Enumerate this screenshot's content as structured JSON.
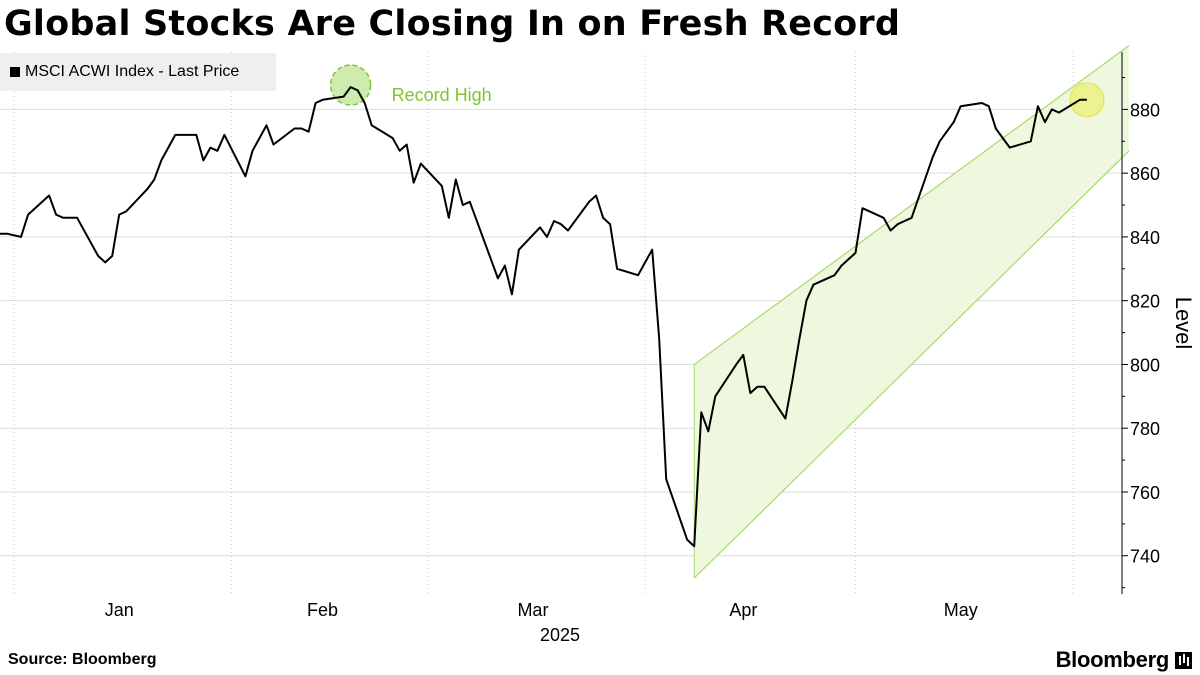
{
  "title": "Global Stocks Are Closing In on Fresh Record",
  "legend": {
    "label": "MSCI ACWI Index - Last Price"
  },
  "source": "Source: Bloomberg",
  "brand": "Bloomberg",
  "colors": {
    "line": "#000000",
    "channel_fill": "#eef8de",
    "channel_line": "#a6dc6a",
    "record_marker": "#a6dc6a",
    "latest_marker": "#ecef5a",
    "annotation": "#7dc52e",
    "grid": "#dddddd"
  },
  "chart_data": {
    "type": "line",
    "title": "Global Stocks Are Closing In on Fresh Record",
    "ylabel": "Level",
    "xlabel": "2025",
    "ylim": [
      728,
      898
    ],
    "y_ticks": [
      740,
      760,
      780,
      800,
      820,
      840,
      860,
      880
    ],
    "x_ticks": [
      "Jan",
      "Feb",
      "Mar",
      "Apr",
      "May"
    ],
    "x_year": "2025",
    "grid": true,
    "legend_position": "top-left",
    "series": [
      {
        "name": "MSCI ACWI Index - Last Price",
        "points": [
          [
            "2024-12-30",
            841
          ],
          [
            "2024-12-31",
            841
          ],
          [
            "2025-01-02",
            840
          ],
          [
            "2025-01-03",
            847
          ],
          [
            "2025-01-06",
            853
          ],
          [
            "2025-01-07",
            847
          ],
          [
            "2025-01-08",
            846
          ],
          [
            "2025-01-10",
            846
          ],
          [
            "2025-01-13",
            834
          ],
          [
            "2025-01-14",
            832
          ],
          [
            "2025-01-15",
            834
          ],
          [
            "2025-01-16",
            847
          ],
          [
            "2025-01-17",
            848
          ],
          [
            "2025-01-20",
            855
          ],
          [
            "2025-01-21",
            858
          ],
          [
            "2025-01-22",
            864
          ],
          [
            "2025-01-23",
            868
          ],
          [
            "2025-01-24",
            872
          ],
          [
            "2025-01-27",
            872
          ],
          [
            "2025-01-28",
            864
          ],
          [
            "2025-01-29",
            868
          ],
          [
            "2025-01-30",
            867
          ],
          [
            "2025-01-31",
            872
          ],
          [
            "2025-02-03",
            859
          ],
          [
            "2025-02-04",
            867
          ],
          [
            "2025-02-05",
            871
          ],
          [
            "2025-02-06",
            875
          ],
          [
            "2025-02-07",
            869
          ],
          [
            "2025-02-10",
            874
          ],
          [
            "2025-02-11",
            874
          ],
          [
            "2025-02-12",
            873
          ],
          [
            "2025-02-13",
            882
          ],
          [
            "2025-02-14",
            883
          ],
          [
            "2025-02-17",
            884
          ],
          [
            "2025-02-18",
            887
          ],
          [
            "2025-02-19",
            886
          ],
          [
            "2025-02-20",
            882
          ],
          [
            "2025-02-21",
            875
          ],
          [
            "2025-02-24",
            871
          ],
          [
            "2025-02-25",
            867
          ],
          [
            "2025-02-26",
            869
          ],
          [
            "2025-02-27",
            857
          ],
          [
            "2025-02-28",
            863
          ],
          [
            "2025-03-03",
            856
          ],
          [
            "2025-03-04",
            846
          ],
          [
            "2025-03-05",
            858
          ],
          [
            "2025-03-06",
            850
          ],
          [
            "2025-03-07",
            851
          ],
          [
            "2025-03-10",
            833
          ],
          [
            "2025-03-11",
            827
          ],
          [
            "2025-03-12",
            831
          ],
          [
            "2025-03-13",
            822
          ],
          [
            "2025-03-14",
            836
          ],
          [
            "2025-03-17",
            843
          ],
          [
            "2025-03-18",
            840
          ],
          [
            "2025-03-19",
            845
          ],
          [
            "2025-03-20",
            844
          ],
          [
            "2025-03-21",
            842
          ],
          [
            "2025-03-24",
            851
          ],
          [
            "2025-03-25",
            853
          ],
          [
            "2025-03-26",
            846
          ],
          [
            "2025-03-27",
            844
          ],
          [
            "2025-03-28",
            830
          ],
          [
            "2025-03-31",
            828
          ],
          [
            "2025-04-01",
            832
          ],
          [
            "2025-04-02",
            836
          ],
          [
            "2025-04-03",
            808
          ],
          [
            "2025-04-04",
            764
          ],
          [
            "2025-04-07",
            745
          ],
          [
            "2025-04-08",
            743
          ],
          [
            "2025-04-09",
            785
          ],
          [
            "2025-04-10",
            779
          ],
          [
            "2025-04-11",
            790
          ],
          [
            "2025-04-14",
            800
          ],
          [
            "2025-04-15",
            803
          ],
          [
            "2025-04-16",
            791
          ],
          [
            "2025-04-17",
            793
          ],
          [
            "2025-04-18",
            793
          ],
          [
            "2025-04-21",
            783
          ],
          [
            "2025-04-22",
            795
          ],
          [
            "2025-04-23",
            808
          ],
          [
            "2025-04-24",
            820
          ],
          [
            "2025-04-25",
            825
          ],
          [
            "2025-04-28",
            828
          ],
          [
            "2025-04-29",
            831
          ],
          [
            "2025-04-30",
            833
          ],
          [
            "2025-05-01",
            835
          ],
          [
            "2025-05-02",
            849
          ],
          [
            "2025-05-05",
            846
          ],
          [
            "2025-05-06",
            842
          ],
          [
            "2025-05-07",
            844
          ],
          [
            "2025-05-08",
            845
          ],
          [
            "2025-05-09",
            846
          ],
          [
            "2025-05-12",
            865
          ],
          [
            "2025-05-13",
            870
          ],
          [
            "2025-05-14",
            873
          ],
          [
            "2025-05-15",
            876
          ],
          [
            "2025-05-16",
            881
          ],
          [
            "2025-05-19",
            882
          ],
          [
            "2025-05-20",
            881
          ],
          [
            "2025-05-21",
            874
          ],
          [
            "2025-05-22",
            871
          ],
          [
            "2025-05-23",
            868
          ],
          [
            "2025-05-26",
            870
          ],
          [
            "2025-05-27",
            881
          ],
          [
            "2025-05-28",
            876
          ],
          [
            "2025-05-29",
            880
          ],
          [
            "2025-05-30",
            879
          ],
          [
            "2025-06-02",
            883
          ],
          [
            "2025-06-03",
            883
          ]
        ]
      }
    ],
    "trend_channel": {
      "start": "2025-04-08",
      "end": "2025-06-09",
      "upper": [
        800,
        900
      ],
      "lower": [
        733,
        867
      ]
    },
    "annotations": [
      {
        "text": "Record High",
        "x": "2025-02-18",
        "y": 887
      },
      {
        "text": "",
        "x": "2025-06-03",
        "y": 883
      }
    ]
  }
}
